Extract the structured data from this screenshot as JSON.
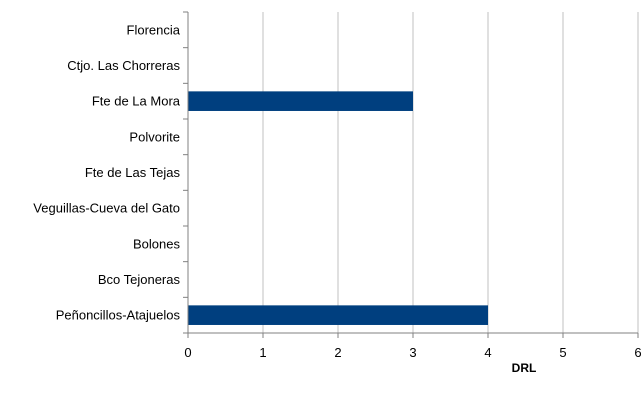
{
  "chart_data": {
    "type": "bar",
    "orientation": "horizontal",
    "categories": [
      "Florencia",
      "Ctjo. Las Chorreras",
      "Fte de La Mora",
      "Polvorite",
      "Fte de Las Tejas",
      "Veguillas-Cueva del Gato",
      "Bolones",
      "Bco Tejoneras",
      "Peñoncillos-Atajuelos"
    ],
    "values": [
      0,
      0,
      3,
      0,
      0,
      0,
      0,
      0,
      4
    ],
    "xlabel": "DRL",
    "ylabel": "",
    "xlim": [
      0,
      6
    ],
    "xticks": [
      "0",
      "1",
      "2",
      "3",
      "4",
      "5",
      "6"
    ],
    "grid": "vertical",
    "bar_color": "#003f7f",
    "grid_color": "#c0c0c0"
  }
}
